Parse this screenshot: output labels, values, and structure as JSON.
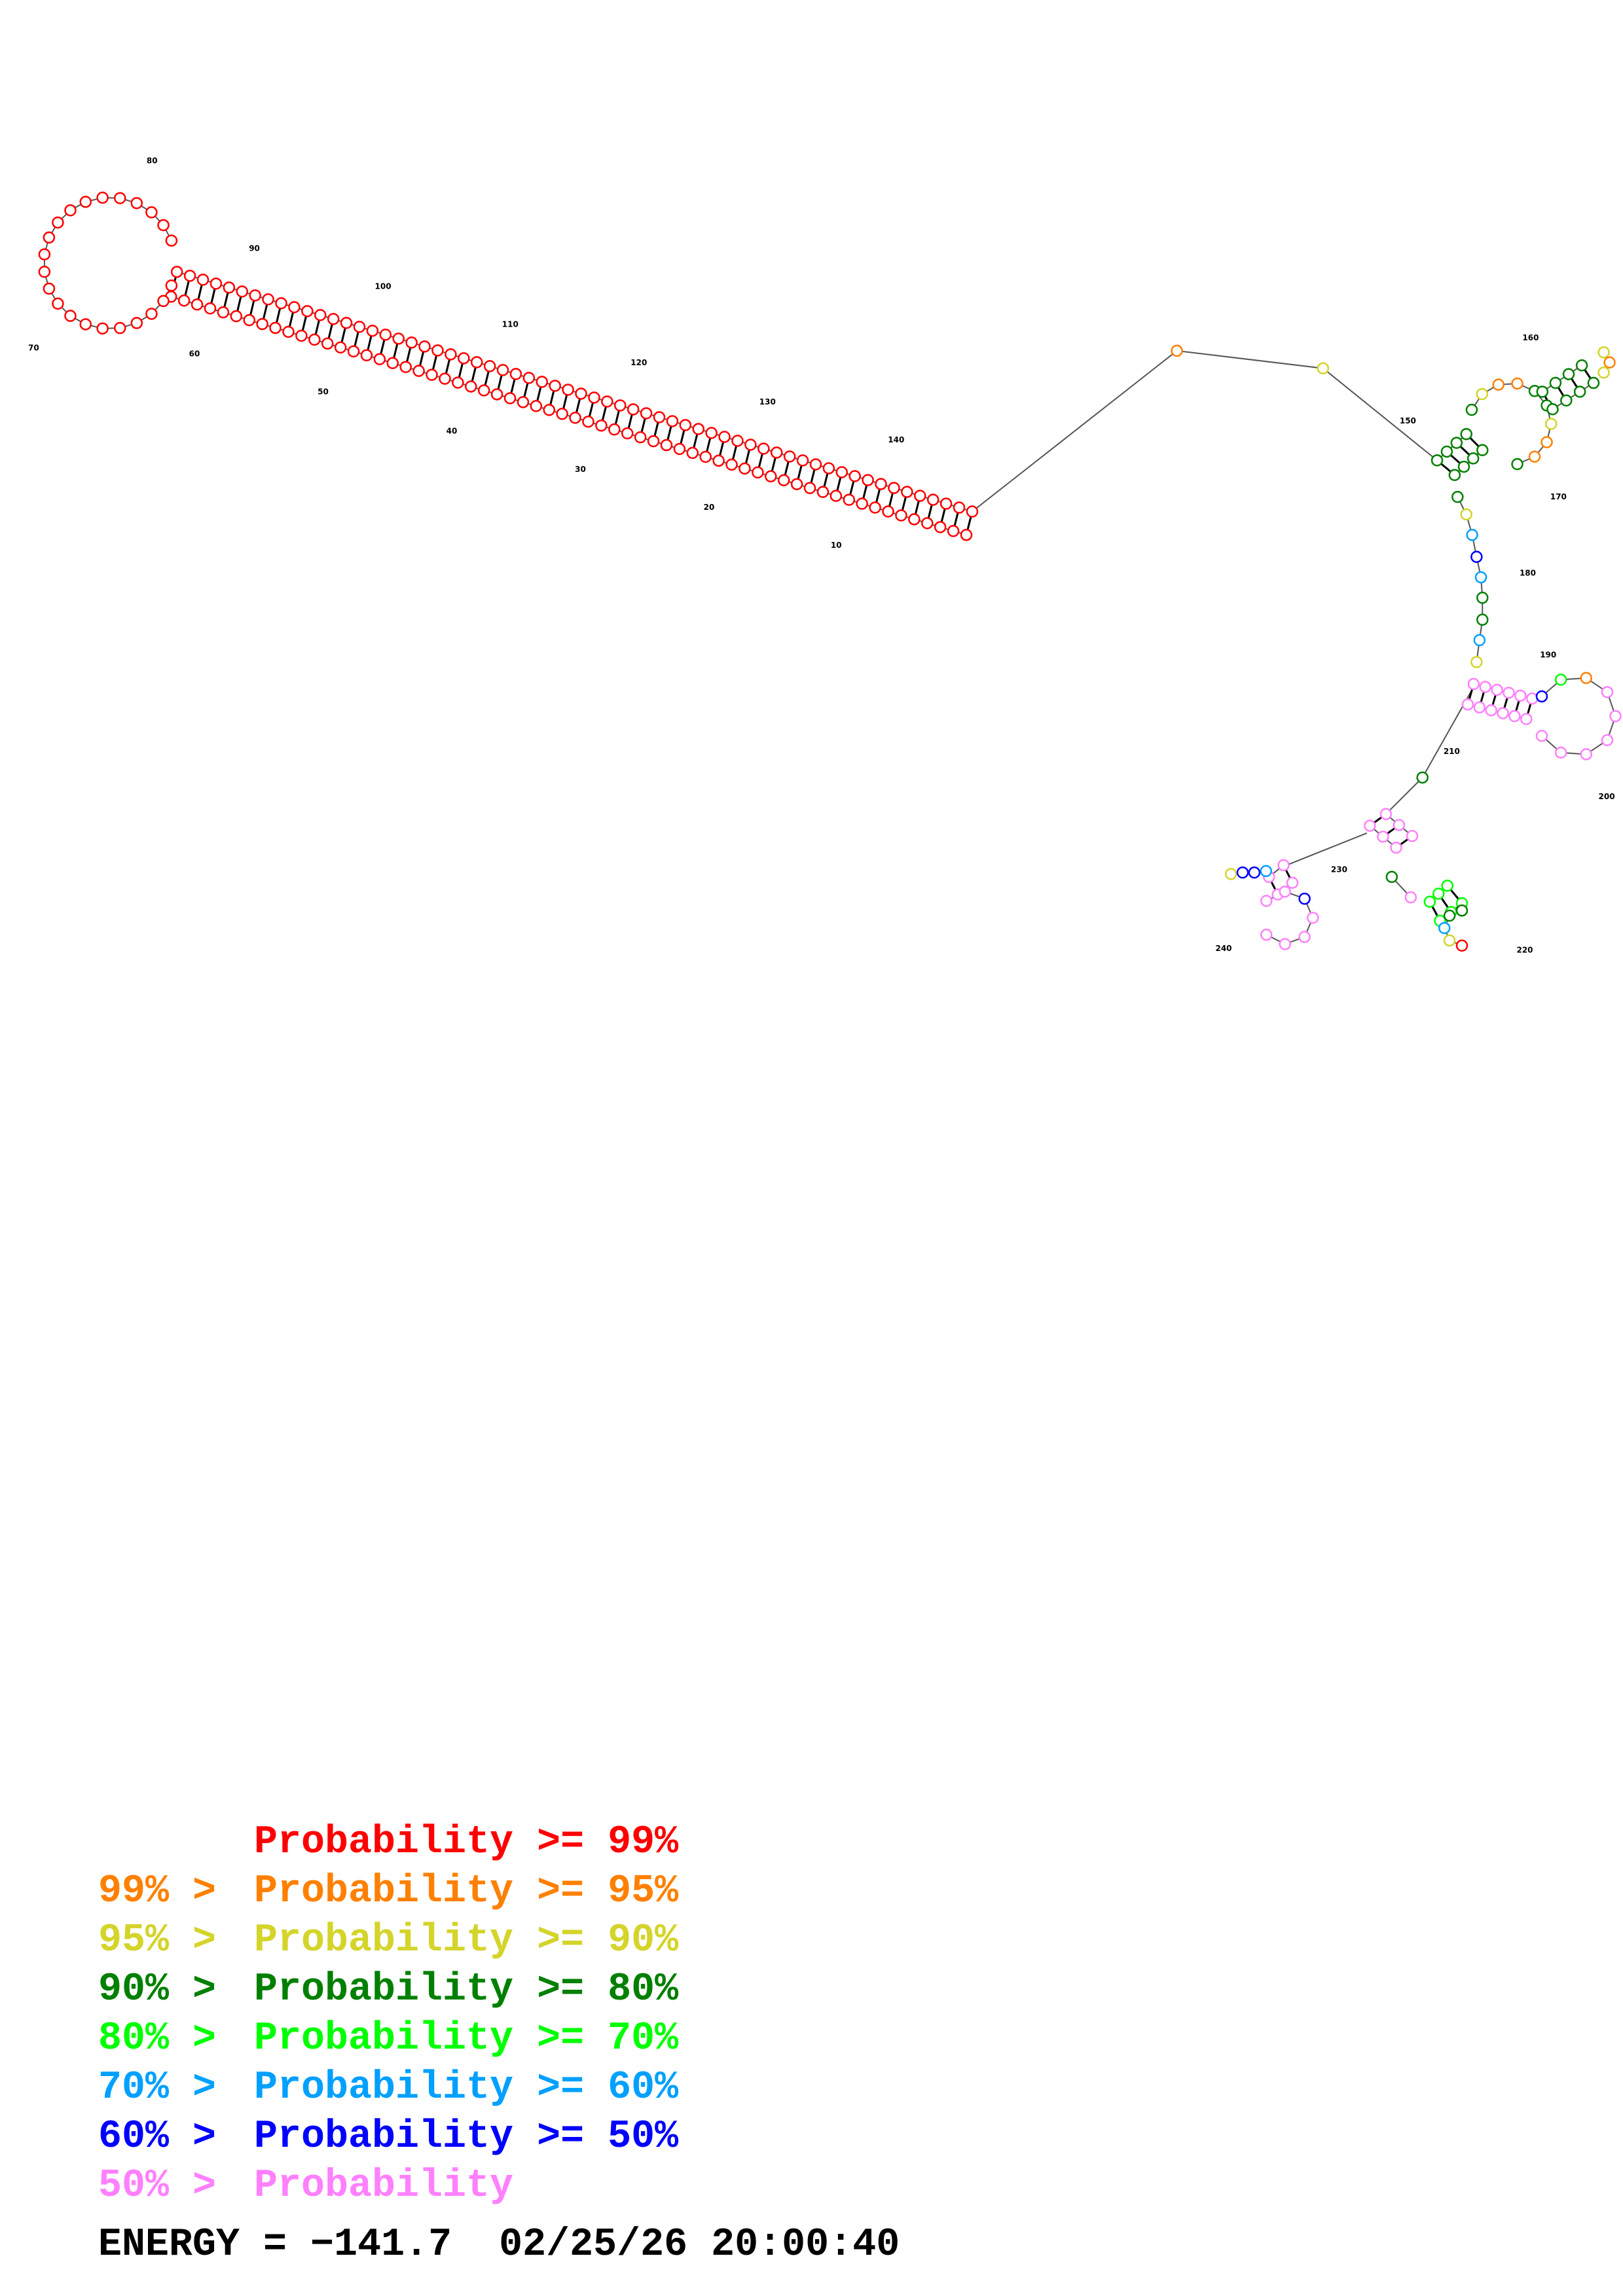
{
  "structure": {
    "labels": [
      "10",
      "20",
      "30",
      "40",
      "50",
      "60",
      "70",
      "80",
      "90",
      "100",
      "110",
      "120",
      "130",
      "140",
      "150",
      "160",
      "170",
      "180",
      "190",
      "200",
      "210",
      "220",
      "230",
      "240"
    ]
  },
  "legend": {
    "items": [
      {
        "label": "Probability >= 99%",
        "color": "#ff0000"
      },
      {
        "range": "99% >",
        "label": "Probability >= 95%",
        "color": "#ff8000"
      },
      {
        "range": "95% >",
        "label": "Probability >= 90%",
        "color": "#d4d42a"
      },
      {
        "range": "90% >",
        "label": "Probability >= 80%",
        "color": "#008000"
      },
      {
        "range": "80% >",
        "label": "Probability >= 70%",
        "color": "#00ff00"
      },
      {
        "range": "70% >",
        "label": "Probability >= 60%",
        "color": "#00a0ff"
      },
      {
        "range": "60% >",
        "label": "Probability >= 50%",
        "color": "#0000ff"
      },
      {
        "range": "50% >",
        "label": "Probability",
        "color": "#ff80ff"
      }
    ]
  },
  "footer": {
    "energy": "ENERGY = −141.7  02/25/26 20:00:40"
  }
}
